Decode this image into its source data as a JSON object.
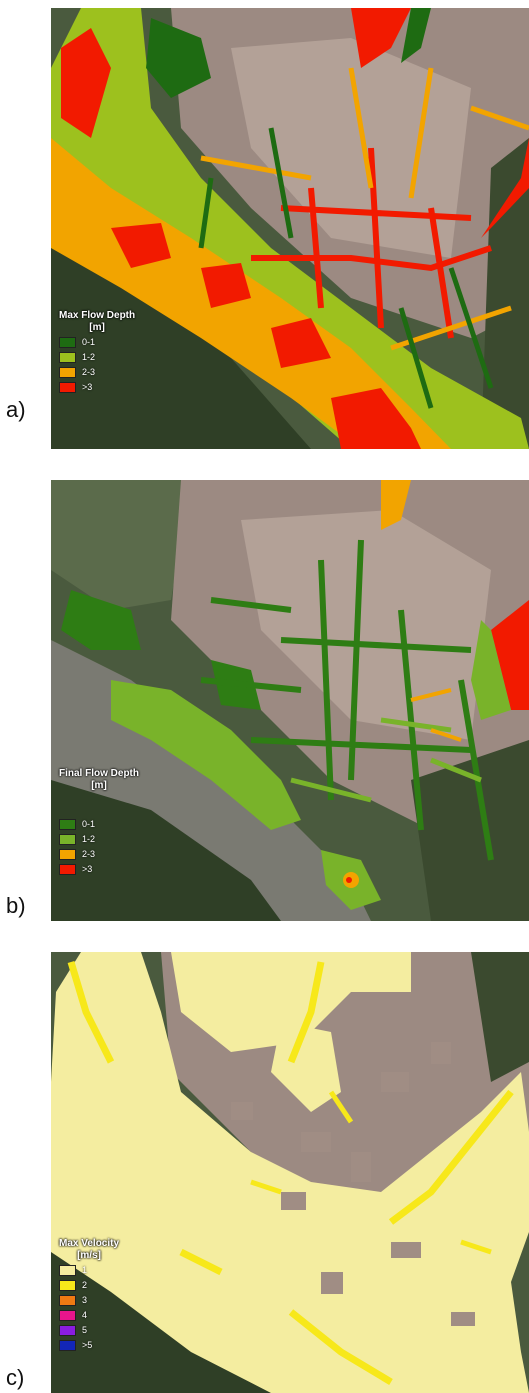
{
  "panels": [
    {
      "letter": "a)",
      "legend": {
        "title_line1": "Max Flow Depth",
        "title_line2": "[m]",
        "classes": [
          {
            "label": "0-1",
            "color": "#1e6b12"
          },
          {
            "label": "1-2",
            "color": "#9dc11e"
          },
          {
            "label": "2-3",
            "color": "#f2a400"
          },
          {
            "label": ">3",
            "color": "#f21a00"
          }
        ]
      }
    },
    {
      "letter": "b)",
      "legend": {
        "title_line1": "Final Flow Depth",
        "title_line2": "[m]",
        "classes": [
          {
            "label": "0-1",
            "color": "#2e7d14"
          },
          {
            "label": "1-2",
            "color": "#79b32a"
          },
          {
            "label": "2-3",
            "color": "#f2a400"
          },
          {
            "label": ">3",
            "color": "#f21a00"
          }
        ]
      }
    },
    {
      "letter": "c)",
      "legend": {
        "title_line1": "Max Velocity",
        "title_line2": "[m/s]",
        "classes": [
          {
            "label": "1",
            "color": "#f4eda0"
          },
          {
            "label": "2",
            "color": "#f7e81a"
          },
          {
            "label": "3",
            "color": "#f07a12"
          },
          {
            "label": "4",
            "color": "#e8158c"
          },
          {
            "label": "5",
            "color": "#8a1de0"
          },
          {
            "label": ">5",
            "color": "#1226b8"
          }
        ]
      }
    }
  ]
}
